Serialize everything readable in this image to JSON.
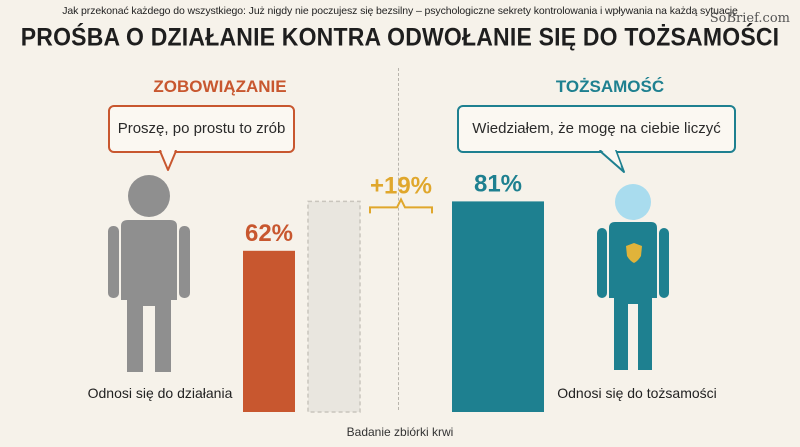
{
  "header": {
    "subtitle": "Jak przekonać każdego do wszystkiego: Już nigdy nie poczujesz się bezsilny – psychologiczne sekrety kontrolowania i wpływania na każdą sytuację",
    "title": "PROŚBA O DZIAŁANIE KONTRA ODWOŁANIE SIĘ DO TOŻSAMOŚCI",
    "watermark": "SoBrief.com"
  },
  "left": {
    "heading": "ZOBOWIĄZANIE",
    "quote": "Proszę, po prostu to zrób",
    "caption": "Odnosi się do działania",
    "color": "#c8572f",
    "figure_icon": "person-gray-icon"
  },
  "right": {
    "heading": "TOŻSAMOŚĆ",
    "quote": "Wiedziałem, że mogę na ciebie liczyć",
    "caption": "Odnosi się do tożsamości",
    "color": "#1e8090",
    "figure_icon": "person-teal-badge-icon"
  },
  "footer": "Badanie zbiórki krwi",
  "chart_data": {
    "type": "bar",
    "categories": [
      "Odnosi się do działania",
      "Odnosi się do tożsamości"
    ],
    "values": [
      62,
      81
    ],
    "value_labels": [
      "62%",
      "81%"
    ],
    "difference_label": "+19%",
    "colors": [
      "#c8572f",
      "#1e8090"
    ],
    "ylim": [
      0,
      100
    ],
    "grid": false
  }
}
